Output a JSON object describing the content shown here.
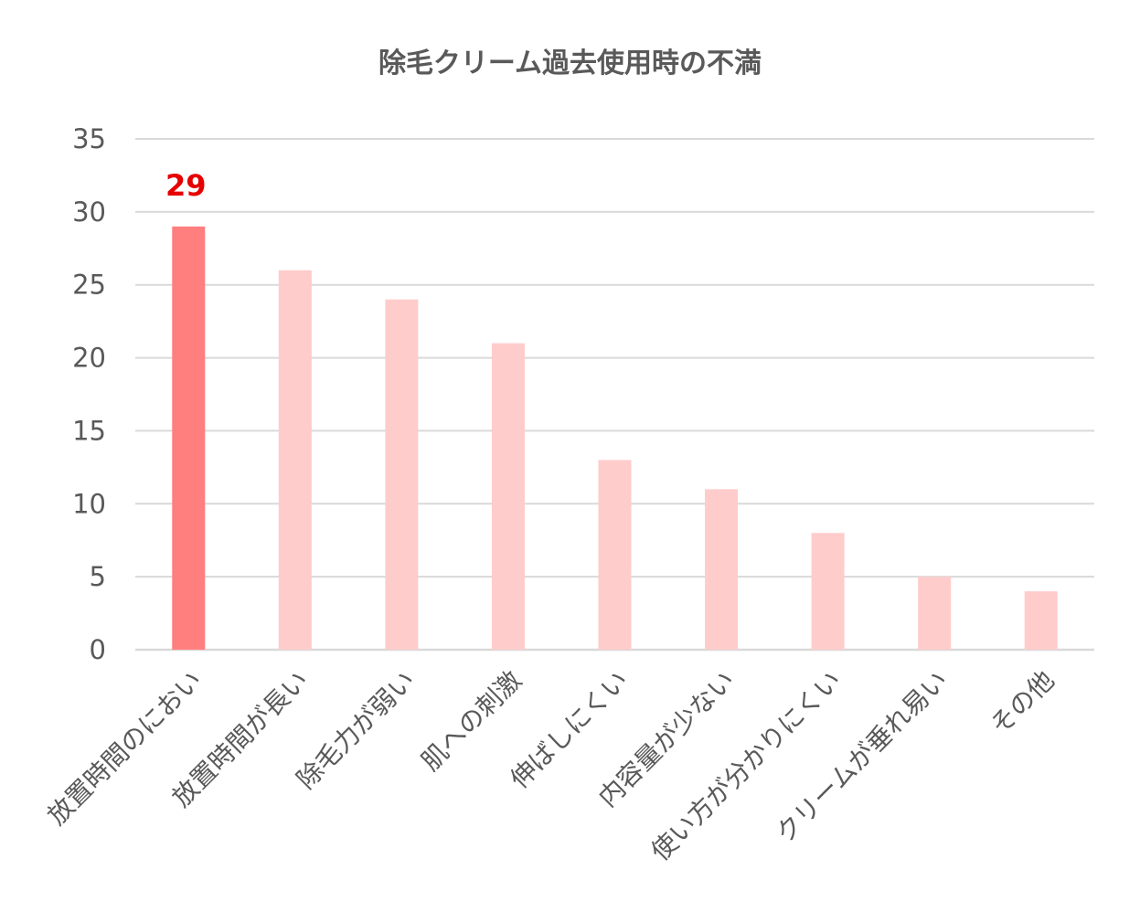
{
  "chart_data": {
    "type": "bar",
    "title": "除毛クリーム過去使用時の不満",
    "xlabel": "",
    "ylabel": "",
    "ylim": [
      0,
      35
    ],
    "yticks": [
      0,
      5,
      10,
      15,
      20,
      25,
      30,
      35
    ],
    "grid": true,
    "categories": [
      "放置時間のにおい",
      "放置時間が長い",
      "除毛力が弱い",
      "肌への刺激",
      "伸ばしにくい",
      "内容量が少ない",
      "使い方が分かりにくい",
      "クリームが垂れ易い",
      "その他"
    ],
    "values": [
      29,
      26,
      24,
      21,
      13,
      11,
      8,
      5,
      4
    ],
    "highlight_index": 0,
    "data_labels": [
      {
        "index": 0,
        "text": "29"
      }
    ],
    "colors": {
      "highlight_bar": "#FF7F7F",
      "bar": "#FFCCCC",
      "data_label": "#E60000",
      "grid": "#D9D9D9",
      "text": "#595959"
    }
  }
}
